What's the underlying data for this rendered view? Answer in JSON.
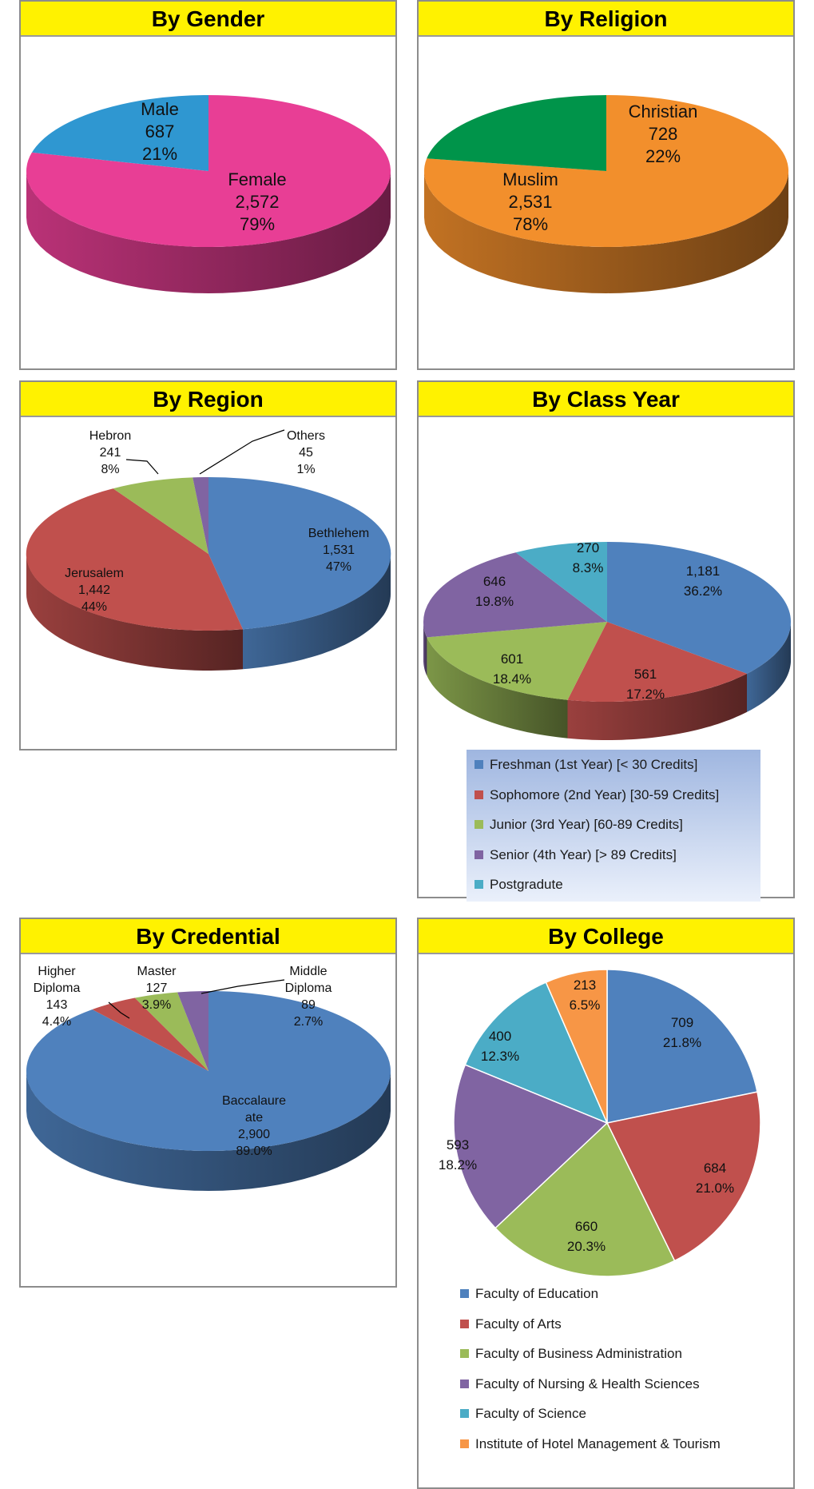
{
  "chart_data": [
    {
      "id": "gender",
      "type": "pie",
      "title": "By Gender",
      "slices": [
        {
          "label_lines": [
            "Female"
          ],
          "value_text": "2,572",
          "percent_text": "79%",
          "value": 2572,
          "percent": 79,
          "color": "#e83e95"
        },
        {
          "label_lines": [
            "Male"
          ],
          "value_text": "687",
          "percent_text": "21%",
          "value": 687,
          "percent": 21,
          "color": "#2f97d1"
        }
      ]
    },
    {
      "id": "religion",
      "type": "pie",
      "title": "By Religion",
      "slices": [
        {
          "label_lines": [
            "Muslim"
          ],
          "value_text": "2,531",
          "percent_text": "78%",
          "value": 2531,
          "percent": 78,
          "color": "#f28f2c"
        },
        {
          "label_lines": [
            "Christian"
          ],
          "value_text": "728",
          "percent_text": "22%",
          "value": 728,
          "percent": 22,
          "color": "#00944a"
        }
      ]
    },
    {
      "id": "region",
      "type": "pie",
      "title": "By Region",
      "slices": [
        {
          "label_lines": [
            "Bethlehem"
          ],
          "value_text": "1,531",
          "percent_text": "47%",
          "value": 1531,
          "percent": 47,
          "color": "#4f81bd"
        },
        {
          "label_lines": [
            "Jerusalem"
          ],
          "value_text": "1,442",
          "percent_text": "44%",
          "value": 1442,
          "percent": 44,
          "color": "#c0504d"
        },
        {
          "label_lines": [
            "Hebron"
          ],
          "value_text": "241",
          "percent_text": "8%",
          "value": 241,
          "percent": 8,
          "color": "#9bbb59"
        },
        {
          "label_lines": [
            "Others"
          ],
          "value_text": "45",
          "percent_text": "1%",
          "value": 45,
          "percent": 1,
          "color": "#8064a2"
        }
      ]
    },
    {
      "id": "classyear",
      "type": "pie",
      "title": "By Class Year",
      "slices": [
        {
          "legend": "Freshman (1st Year) [< 30 Credits]",
          "value_text": "1,181",
          "percent_text": "36.2%",
          "value": 1181,
          "percent": 36.2,
          "color": "#4f81bd"
        },
        {
          "legend": "Sophomore (2nd Year)  [30-59 Credits]",
          "value_text": "561",
          "percent_text": "17.2%",
          "value": 561,
          "percent": 17.2,
          "color": "#c0504d"
        },
        {
          "legend": "Junior (3rd Year)  [60-89 Credits]",
          "value_text": "601",
          "percent_text": "18.4%",
          "value": 601,
          "percent": 18.4,
          "color": "#9bbb59"
        },
        {
          "legend": "Senior (4th Year)  [> 89 Credits]",
          "value_text": "646",
          "percent_text": "19.8%",
          "value": 646,
          "percent": 19.8,
          "color": "#8064a2"
        },
        {
          "legend": "Postgradute",
          "value_text": "270",
          "percent_text": "8.3%",
          "value": 270,
          "percent": 8.3,
          "color": "#4bacc6"
        }
      ]
    },
    {
      "id": "credential",
      "type": "pie",
      "title": "By Credential",
      "slices": [
        {
          "label_lines": [
            "Baccalaure",
            "ate"
          ],
          "value_text": "2,900",
          "percent_text": "89.0%",
          "value": 2900,
          "percent": 89.0,
          "color": "#4f81bd"
        },
        {
          "label_lines": [
            "Higher",
            "Diploma"
          ],
          "value_text": "143",
          "percent_text": "4.4%",
          "value": 143,
          "percent": 4.4,
          "color": "#c0504d"
        },
        {
          "label_lines": [
            "Master"
          ],
          "value_text": "127",
          "percent_text": "3.9%",
          "value": 127,
          "percent": 3.9,
          "color": "#9bbb59"
        },
        {
          "label_lines": [
            "Middle",
            "Diploma"
          ],
          "value_text": "89",
          "percent_text": "2.7%",
          "value": 89,
          "percent": 2.7,
          "color": "#8064a2"
        }
      ]
    },
    {
      "id": "college",
      "type": "pie",
      "title": "By College",
      "slices": [
        {
          "legend": "Faculty of Education",
          "value_text": "709",
          "percent_text": "21.8%",
          "value": 709,
          "percent": 21.8,
          "color": "#4f81bd"
        },
        {
          "legend": "Faculty of Arts",
          "value_text": "684",
          "percent_text": "21.0%",
          "value": 684,
          "percent": 21.0,
          "color": "#c0504d"
        },
        {
          "legend": "Faculty of Business Administration",
          "value_text": "660",
          "percent_text": "20.3%",
          "value": 660,
          "percent": 20.3,
          "color": "#9bbb59"
        },
        {
          "legend": "Faculty of Nursing & Health Sciences",
          "value_text": "593",
          "percent_text": "18.2%",
          "value": 593,
          "percent": 18.2,
          "color": "#8064a2"
        },
        {
          "legend": "Faculty of Science",
          "value_text": "400",
          "percent_text": "12.3%",
          "value": 400,
          "percent": 12.3,
          "color": "#4bacc6"
        },
        {
          "legend": "Institute of Hotel Management & Tourism",
          "value_text": "213",
          "percent_text": "6.5%",
          "value": 213,
          "percent": 6.5,
          "color": "#f79646"
        }
      ]
    }
  ]
}
